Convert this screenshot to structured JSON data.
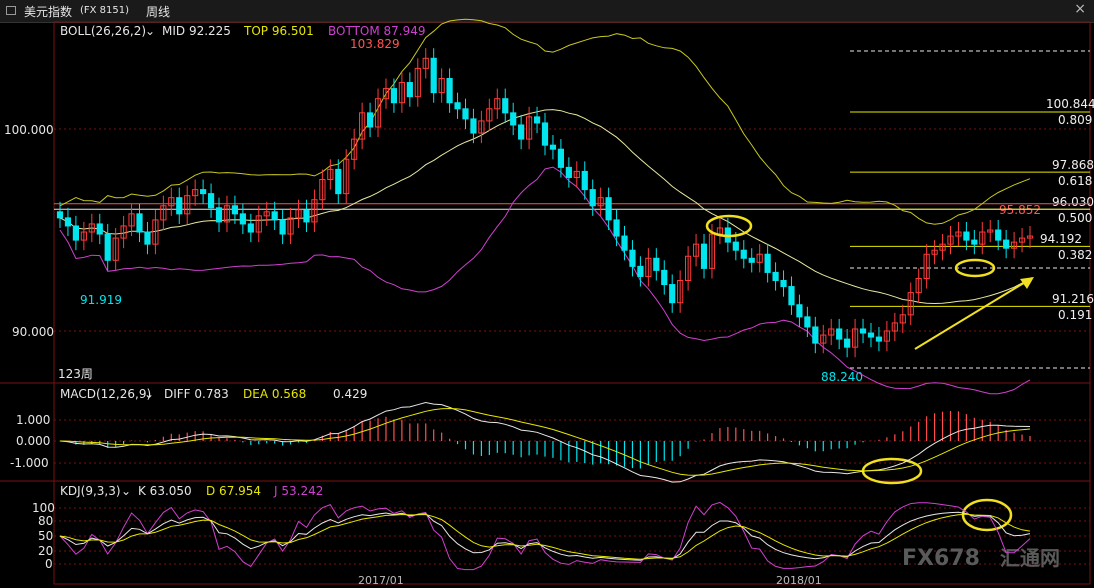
{
  "window": {
    "symbol": "美元指数",
    "code": "(FX 8151)",
    "period": "周线",
    "close_glyph": "×"
  },
  "main_panel": {
    "indicator_name": "BOLL(26,26,2)",
    "mid_label": "MID 92.225",
    "top_label": "TOP 96.501",
    "bottom_label": "BOTTOM 87.949",
    "bars_label": "123周",
    "high_label": "103.829",
    "low_left_label": "91.919",
    "low_right_label": "88.240",
    "last_high_label": "95.852",
    "price_axis": [
      "100.000",
      "90.000"
    ],
    "colors": {
      "up": "#ff3b3b",
      "down": "#00e5ee",
      "mid": "#e8e8a0",
      "upper": "#c8c820",
      "lower": "#d040d0",
      "fib": "#e6e600",
      "arrow": "#f0e020",
      "ellipse": "#f0e020"
    }
  },
  "fibonacci": [
    {
      "price": "100.844",
      "ratio": "0.809"
    },
    {
      "price": "97.868",
      "ratio": "0.618"
    },
    {
      "price": "96.030",
      "ratio": "0.500"
    },
    {
      "price": "94.192",
      "ratio": "0.382"
    },
    {
      "price": "91.216",
      "ratio": "0.191"
    }
  ],
  "macd_panel": {
    "indicator_name": "MACD(12,26,9)",
    "diff_label": "DIFF 0.783",
    "dea_label": "DEA 0.568",
    "hist_label": "0.429",
    "axis": [
      "1.000",
      "0.000",
      "-1.000"
    ]
  },
  "kdj_panel": {
    "indicator_name": "KDJ(9,3,3)",
    "k_label": "K 63.050",
    "d_label": "D 67.954",
    "j_label": "J 53.242",
    "axis": [
      "100",
      "80",
      "50",
      "20",
      "0"
    ]
  },
  "time_axis": [
    "2017/01",
    "2018/01"
  ],
  "watermark": {
    "brand": "FX678",
    "cn": "汇通网"
  },
  "chart_data": {
    "type": "candlestick",
    "title": "美元指数 周线",
    "ylim": [
      87,
      105
    ],
    "series": [
      {
        "name": "美元指数",
        "close": [
          95.6,
          95.2,
          94.5,
          94.9,
          95.3,
          94.8,
          93.5,
          94.6,
          95.2,
          95.8,
          94.9,
          94.3,
          95.5,
          96.2,
          96.6,
          95.8,
          96.7,
          97.0,
          96.8,
          96.1,
          95.4,
          96.2,
          95.8,
          95.3,
          94.9,
          95.7,
          95.9,
          95.5,
          94.8,
          95.6,
          96.0,
          95.4,
          96.5,
          97.5,
          98.0,
          96.8,
          98.5,
          99.5,
          100.8,
          100.1,
          101.5,
          102.0,
          101.3,
          102.3,
          101.6,
          103.0,
          103.5,
          101.8,
          102.5,
          101.3,
          101.0,
          100.5,
          99.8,
          100.4,
          101.0,
          101.5,
          100.8,
          100.2,
          99.5,
          100.6,
          100.3,
          99.2,
          99.0,
          98.1,
          97.6,
          97.9,
          97.0,
          96.2,
          96.6,
          95.5,
          94.7,
          94.0,
          93.2,
          92.7,
          93.6,
          93.0,
          92.3,
          91.4,
          92.5,
          93.7,
          94.3,
          93.1,
          94.8,
          95.1,
          94.4,
          94.0,
          93.6,
          93.4,
          93.8,
          92.9,
          92.5,
          92.2,
          91.3,
          90.7,
          90.2,
          89.4,
          89.8,
          90.1,
          89.6,
          89.2,
          90.1,
          89.9,
          89.7,
          89.5,
          90.0,
          90.4,
          90.8,
          91.9,
          92.6,
          93.8,
          94.0,
          94.3,
          94.7,
          94.9,
          94.5,
          94.3,
          94.9,
          95.0,
          94.5,
          94.1,
          94.4,
          94.6,
          94.7
        ]
      }
    ],
    "bollinger": {
      "mid": 92.225,
      "top": 96.501,
      "bottom": 87.949
    },
    "annotations": {
      "high": 103.829,
      "low_left": 91.919,
      "low_right": 88.24,
      "last_high": 95.852
    },
    "fibonacci": [
      {
        "price": 100.844,
        "ratio": 0.809
      },
      {
        "price": 97.868,
        "ratio": 0.618
      },
      {
        "price": 96.03,
        "ratio": 0.5
      },
      {
        "price": 94.192,
        "ratio": 0.382
      },
      {
        "price": 91.216,
        "ratio": 0.191
      }
    ],
    "macd": {
      "diff": 0.783,
      "dea": 0.568,
      "hist": 0.429,
      "ylim": [
        -1.5,
        1.5
      ]
    },
    "kdj": {
      "k": 63.05,
      "d": 67.954,
      "j": 53.242,
      "ylim": [
        0,
        100
      ]
    }
  }
}
